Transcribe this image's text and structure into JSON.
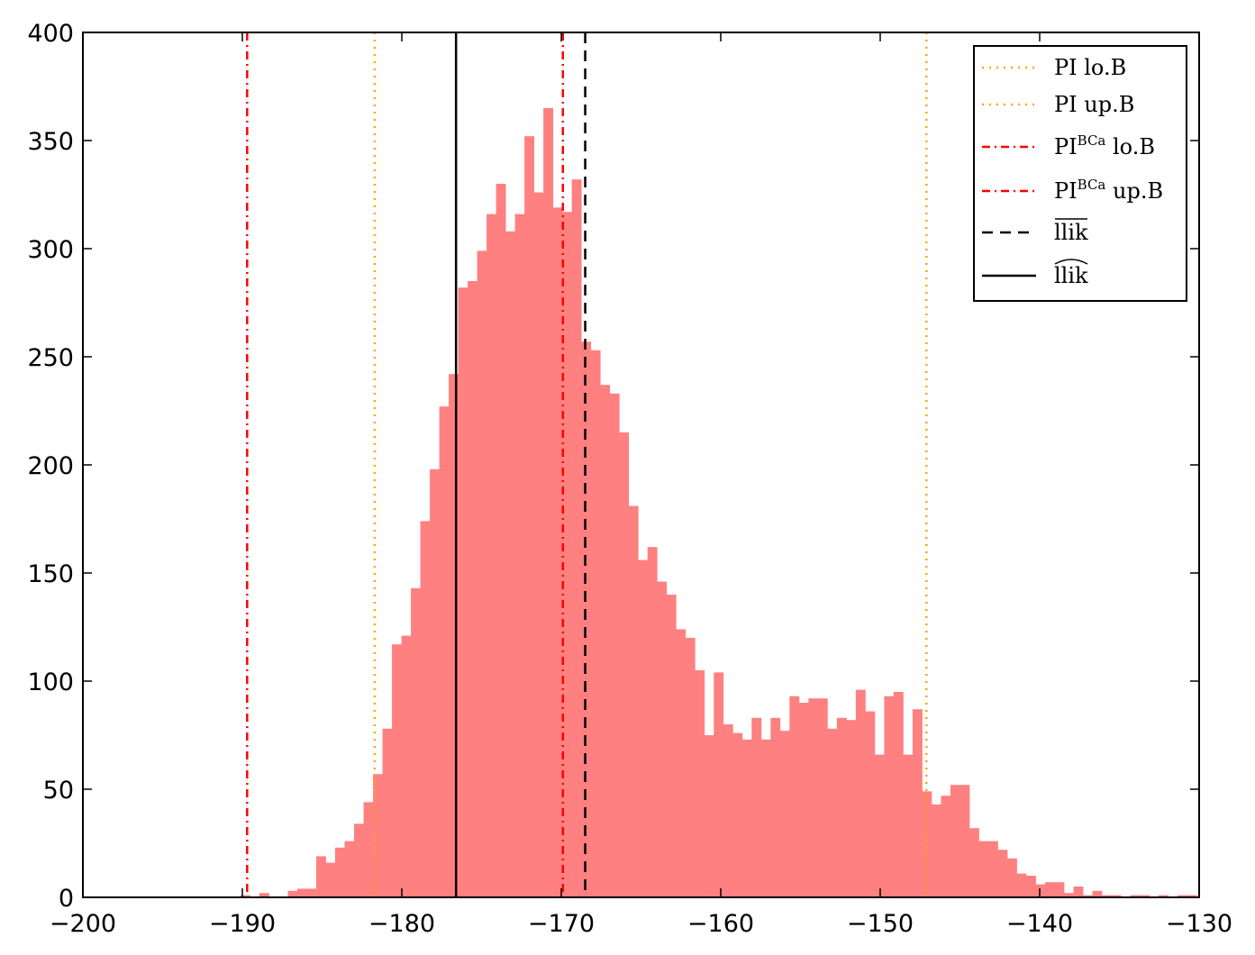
{
  "chart_data": {
    "type": "bar",
    "title": "",
    "xlabel": "",
    "ylabel": "",
    "xlim": [
      -200,
      -130
    ],
    "ylim": [
      0,
      400
    ],
    "xticks": [
      -200,
      -190,
      -180,
      -170,
      -160,
      -150,
      -140,
      -130
    ],
    "yticks": [
      0,
      50,
      100,
      150,
      200,
      250,
      300,
      350,
      400
    ],
    "xtick_labels": [
      "−200",
      "−190",
      "−180",
      "−170",
      "−160",
      "−150",
      "−140",
      "−130"
    ],
    "ytick_labels": [
      "0",
      "50",
      "100",
      "150",
      "200",
      "250",
      "300",
      "350",
      "400"
    ],
    "grid": false,
    "legend_position": "top-right",
    "histogram": {
      "color": "#ff8080",
      "bin_start": -190.71,
      "bin_width": 0.5936,
      "counts": [
        0,
        1,
        0,
        2,
        0,
        0,
        3,
        4,
        4,
        19,
        16,
        23,
        26,
        34,
        44,
        57,
        78,
        117,
        121,
        143,
        174,
        198,
        227,
        242,
        282,
        285,
        299,
        316,
        330,
        308,
        316,
        352,
        326,
        365,
        319,
        317,
        332,
        257,
        253,
        237,
        233,
        215,
        181,
        156,
        162,
        146,
        140,
        124,
        120,
        105,
        75,
        104,
        80,
        76,
        73,
        83,
        73,
        83,
        77,
        93,
        90,
        92,
        92,
        78,
        83,
        82,
        96,
        86,
        66,
        93,
        95,
        66,
        87,
        49,
        43,
        47,
        52,
        52,
        32,
        26,
        26,
        22,
        18,
        11,
        10,
        6,
        7,
        7,
        2,
        5,
        1,
        3,
        1,
        1,
        0,
        1,
        1,
        0,
        1,
        0,
        1,
        1
      ]
    },
    "vlines": [
      {
        "name": "PI lo.B",
        "label_main": "PI lo.B",
        "label_sup": "",
        "label_tail": "",
        "x": -181.7,
        "color": "#ffa500",
        "style": "dotted"
      },
      {
        "name": "PI up.B",
        "label_main": "PI up.B",
        "label_sup": "",
        "label_tail": "",
        "x": -147.1,
        "color": "#ffa500",
        "style": "dotted"
      },
      {
        "name": "PI BCa lo.B",
        "label_main": "PI",
        "label_sup": "BCa",
        "label_tail": "lo.B",
        "x": -189.7,
        "color": "#ff0000",
        "style": "dashdot"
      },
      {
        "name": "PI BCa up.B",
        "label_main": "PI",
        "label_sup": "BCa",
        "label_tail": "up.B",
        "x": -169.9,
        "color": "#ff0000",
        "style": "dashdot"
      },
      {
        "name": "llik mean",
        "label_main": "llik",
        "label_sup": "",
        "label_tail": "",
        "accent": "bar",
        "x": -168.5,
        "color": "#000000",
        "style": "dashed"
      },
      {
        "name": "llik hat",
        "label_main": "llik",
        "label_sup": "",
        "label_tail": "",
        "accent": "hat",
        "x": -176.6,
        "color": "#000000",
        "style": "solid"
      }
    ]
  }
}
